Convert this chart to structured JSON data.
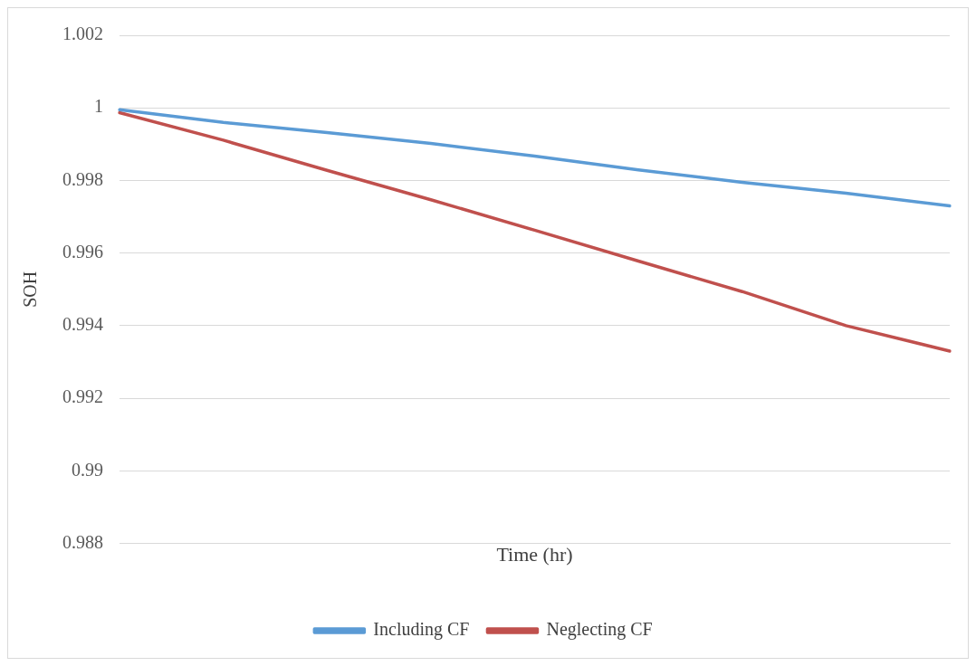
{
  "chart_data": {
    "type": "line",
    "xlabel": "Time (hr)",
    "ylabel": "SOH",
    "categories": [
      null,
      null,
      null,
      null,
      null,
      null,
      null,
      null,
      null
    ],
    "series": [
      {
        "name": "Including CF",
        "color": "#5b9bd5",
        "values": [
          0.99995,
          0.9996,
          0.99932,
          0.99902,
          0.99867,
          0.99829,
          0.99795,
          0.99765,
          0.9973
        ]
      },
      {
        "name": "Neglecting CF",
        "color": "#c0504d",
        "values": [
          0.99987,
          0.99911,
          0.99828,
          0.99747,
          0.99663,
          0.99578,
          0.99494,
          0.994,
          0.9933
        ]
      }
    ],
    "ylim": [
      0.988,
      1.002
    ],
    "yticks": [
      0.988,
      0.99,
      0.992,
      0.994,
      0.996,
      0.998,
      1,
      1.002
    ],
    "grid": "y",
    "legend": "bottom",
    "tick_labels": "y",
    "marker": "none",
    "line_style": "solid"
  }
}
